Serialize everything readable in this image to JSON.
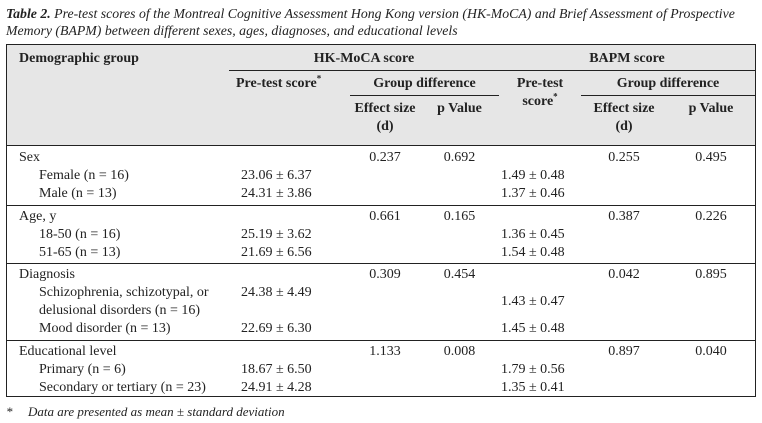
{
  "caption": {
    "lead": "Table 2.",
    "text": "Pre-test scores of the Montreal Cognitive Assessment Hong Kong version (HK-MoCA) and Brief Assessment of Prospective Memory (BAPM) between different sexes, ages, diagnoses, and educational levels"
  },
  "header": {
    "demographic": "Demographic group",
    "hkmoca": "HK-MoCA score",
    "bapm": "BAPM score",
    "pretest_hk": "Pre-test score",
    "pretest_bapm_1": "Pre-test",
    "pretest_bapm_2": "score",
    "asterisk": "*",
    "group_diff": "Group difference",
    "effect_1": "Effect size",
    "effect_2": "(d)",
    "pvalue": "p Value"
  },
  "groups": [
    {
      "label": "Sex",
      "hk_d": "0.237",
      "hk_p": "0.692",
      "bapm_d": "0.255",
      "bapm_p": "0.495",
      "rows": [
        {
          "label": "Female (n = 16)",
          "hk": "23.06 ± 6.37",
          "bapm": "1.49 ± 0.48"
        },
        {
          "label": "Male (n = 13)",
          "hk": "24.31 ± 3.86",
          "bapm": "1.37 ± 0.46"
        }
      ]
    },
    {
      "label": "Age, y",
      "hk_d": "0.661",
      "hk_p": "0.165",
      "bapm_d": "0.387",
      "bapm_p": "0.226",
      "rows": [
        {
          "label": "18-50 (n = 16)",
          "hk": "25.19 ± 3.62",
          "bapm": "1.36 ± 0.45"
        },
        {
          "label": "51-65 (n = 13)",
          "hk": "21.69 ± 6.56",
          "bapm": "1.54 ± 0.48"
        }
      ]
    },
    {
      "label": "Diagnosis",
      "hk_d": "0.309",
      "hk_p": "0.454",
      "bapm_d": "0.042",
      "bapm_p": "0.895",
      "rows": [
        {
          "label": "Schizophrenia, schizotypal, or",
          "label2": "delusional disorders (n = 16)",
          "hk": "24.38 ± 4.49",
          "bapm": "1.43 ± 0.47"
        },
        {
          "label": "Mood disorder (n = 13)",
          "hk": "22.69 ± 6.30",
          "bapm": "1.45 ± 0.48"
        }
      ]
    },
    {
      "label": "Educational level",
      "hk_d": "1.133",
      "hk_p": "0.008",
      "bapm_d": "0.897",
      "bapm_p": "0.040",
      "rows": [
        {
          "label": "Primary (n = 6)",
          "hk": "18.67 ± 6.50",
          "bapm": "1.79 ± 0.56"
        },
        {
          "label": "Secondary or tertiary (n = 23)",
          "hk": "24.91 ± 4.28",
          "bapm": "1.35 ± 0.41"
        }
      ]
    }
  ],
  "footnote": {
    "mark": "*",
    "text": "Data are presented as mean ± standard deviation"
  }
}
